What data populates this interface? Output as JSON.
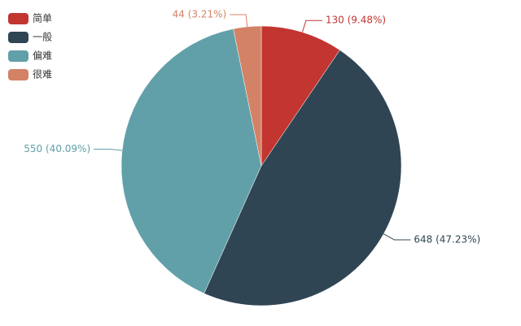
{
  "chart_data": {
    "type": "pie",
    "categories": [
      "简单",
      "一般",
      "偏难",
      "很难"
    ],
    "values": [
      130,
      648,
      550,
      44
    ],
    "value_labels": [
      "130 (9.48%)",
      "648 (47.23%)",
      "550 (40.09%)",
      "44 (3.21%)"
    ],
    "colors": [
      "#c23531",
      "#2f4554",
      "#61a0a8",
      "#d48265"
    ],
    "legend": "top-left"
  }
}
